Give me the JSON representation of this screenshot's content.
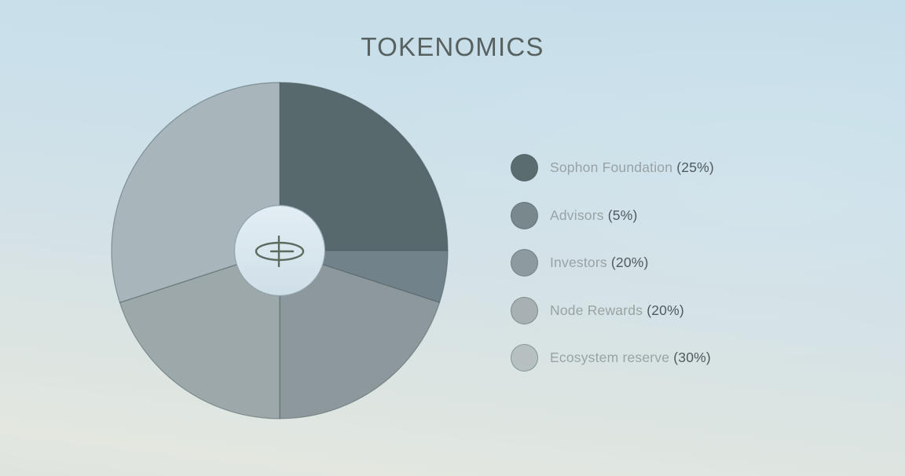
{
  "title": "TOKENOMICS",
  "colors": {
    "background_top": "#c6deea",
    "background_bottom": "#e0e5df",
    "title_text": "#57615f",
    "legend_label_text": "#99a2a5",
    "legend_value_text": "#4f5a5e",
    "slice_stroke": "#47575b",
    "hub_fill_top": "#e3eef4",
    "hub_fill_bottom": "#cfdfe8",
    "hub_border": "#92a3ab",
    "logo_stroke": "#5c6a60"
  },
  "chart_data": {
    "type": "pie",
    "title": "TOKENOMICS",
    "donut": true,
    "start_angle_deg": 0,
    "direction": "clockwise",
    "legend_position": "right",
    "unit": "%",
    "categories": [
      "Sophon Foundation",
      "Advisors",
      "Investors",
      "Node Rewards",
      "Ecosystem reserve"
    ],
    "values": [
      25,
      5,
      20,
      20,
      30
    ],
    "center_logo": "sophon-orbit-logo",
    "items": [
      {
        "id": "sophon-foundation",
        "label": "Sophon Foundation",
        "value": 25,
        "value_text": "(25%)",
        "slice_color": "#58696d",
        "legend_color": "#5b6c6e"
      },
      {
        "id": "advisors",
        "label": "Advisors",
        "value": 5,
        "value_text": "(5%)",
        "slice_color": "#72828a",
        "legend_color": "#78888c"
      },
      {
        "id": "investors",
        "label": "Investors",
        "value": 20,
        "value_text": "(20%)",
        "slice_color": "#8c989b",
        "legend_color": "#8e9b9e"
      },
      {
        "id": "node-rewards",
        "label": "Node Rewards",
        "value": 20,
        "value_text": "(20%)",
        "slice_color": "#9ca8aa",
        "legend_color": "#a7b1b3"
      },
      {
        "id": "ecosystem-reserve",
        "label": "Ecosystem reserve",
        "value": 30,
        "value_text": "(30%)",
        "slice_color": "#a8b6bc",
        "legend_color": "#b6c0c0"
      }
    ]
  }
}
